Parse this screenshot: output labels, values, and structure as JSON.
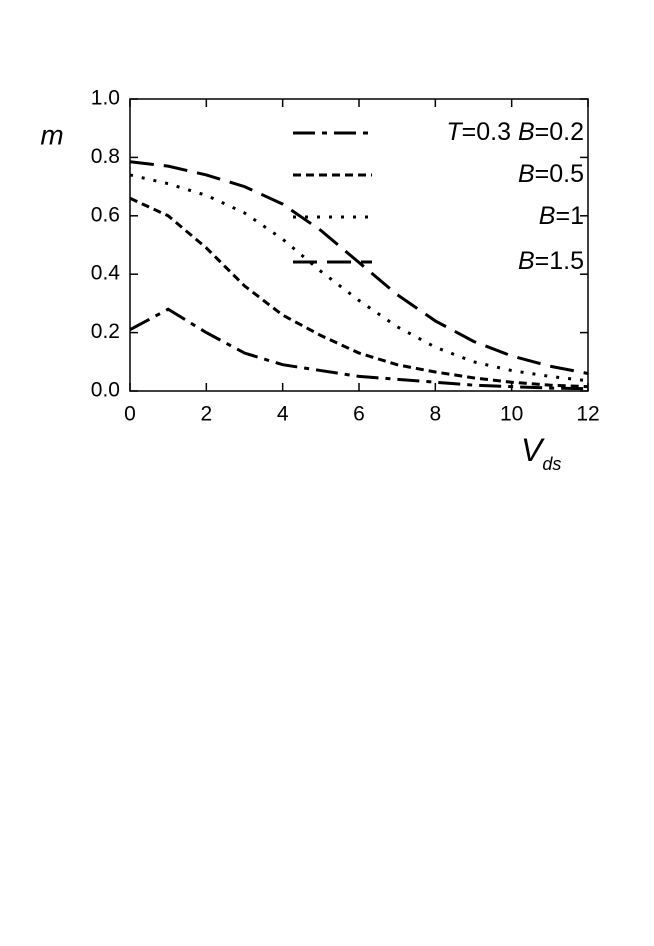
{
  "chart_data": {
    "type": "line",
    "y_label": "m",
    "x_label": "V",
    "x_label_subscript": "ds",
    "x": [
      0,
      1,
      2,
      3,
      4,
      5,
      6,
      7,
      8,
      9,
      10,
      11,
      12
    ],
    "series": [
      {
        "name": "T=0.3 B=0.2",
        "color": "#000000",
        "dash": "dashdot",
        "values": [
          0.21,
          0.28,
          0.2,
          0.13,
          0.09,
          0.07,
          0.05,
          0.04,
          0.03,
          0.02,
          0.015,
          0.01,
          0.008
        ]
      },
      {
        "name": "B=0.5",
        "color": "#000000",
        "dash": "short",
        "values": [
          0.66,
          0.6,
          0.49,
          0.36,
          0.26,
          0.19,
          0.13,
          0.09,
          0.065,
          0.045,
          0.03,
          0.02,
          0.015
        ]
      },
      {
        "name": "B=1",
        "color": "#000000",
        "dash": "dotted",
        "values": [
          0.74,
          0.71,
          0.67,
          0.61,
          0.52,
          0.41,
          0.31,
          0.22,
          0.15,
          0.1,
          0.07,
          0.05,
          0.035
        ]
      },
      {
        "name": "B=1.5",
        "color": "#000000",
        "dash": "long",
        "values": [
          0.785,
          0.77,
          0.74,
          0.7,
          0.64,
          0.55,
          0.44,
          0.33,
          0.24,
          0.17,
          0.12,
          0.085,
          0.06
        ]
      }
    ],
    "xlim": [
      0,
      12
    ],
    "xticks": [
      0,
      2,
      4,
      6,
      8,
      10,
      12
    ],
    "ylim": [
      0,
      1
    ],
    "yticks": [
      {
        "value": 0,
        "label": "0.0"
      },
      {
        "value": 0.2,
        "label": "0.2"
      },
      {
        "value": 0.4,
        "label": "0.4"
      },
      {
        "value": 0.6,
        "label": "0.6"
      },
      {
        "value": 0.8,
        "label": "0.8"
      },
      {
        "value": 1,
        "label": "1.0"
      }
    ],
    "legend": "upper-right"
  }
}
